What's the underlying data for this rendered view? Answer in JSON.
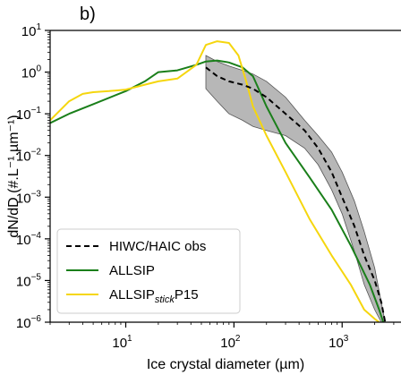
{
  "panel_label": "b)",
  "chart_data": {
    "type": "line",
    "title": "",
    "xlabel": "Ice crystal diameter (µm)",
    "ylabel": "dN/dD (#.L⁻¹.µm⁻¹)",
    "x_scale": "log",
    "y_scale": "log",
    "xlim": [
      2,
      3500
    ],
    "ylim": [
      1e-06,
      10
    ],
    "x_ticks": [
      {
        "value": 10,
        "base": "10",
        "exp": "1"
      },
      {
        "value": 100,
        "base": "10",
        "exp": "2"
      },
      {
        "value": 1000,
        "base": "10",
        "exp": "3"
      }
    ],
    "y_ticks": [
      {
        "value": 10,
        "base": "10",
        "exp": "1"
      },
      {
        "value": 1,
        "base": "10",
        "exp": "0"
      },
      {
        "value": 0.1,
        "base": "10",
        "exp": "−1"
      },
      {
        "value": 0.01,
        "base": "10",
        "exp": "−2"
      },
      {
        "value": 0.001,
        "base": "10",
        "exp": "−3"
      },
      {
        "value": 0.0001,
        "base": "10",
        "exp": "−4"
      },
      {
        "value": 1e-05,
        "base": "10",
        "exp": "−5"
      },
      {
        "value": 1e-06,
        "base": "10",
        "exp": "−6"
      }
    ],
    "legend_position": "lower-left",
    "shaded_range": {
      "color": "#999999",
      "x": [
        55,
        70,
        90,
        120,
        150,
        200,
        300,
        450,
        600,
        800,
        1000,
        1300,
        1600,
        2000,
        2300,
        2500
      ],
      "upper": [
        2.5,
        1.8,
        1.4,
        1.1,
        0.9,
        0.6,
        0.25,
        0.07,
        0.03,
        0.012,
        0.004,
        0.0008,
        0.00015,
        2e-05,
        3e-06,
        1e-06
      ],
      "lower": [
        0.4,
        0.2,
        0.1,
        0.07,
        0.05,
        0.04,
        0.03,
        0.015,
        0.006,
        0.0015,
        0.0004,
        5e-05,
        8e-06,
        2e-06,
        1e-06,
        1e-06
      ]
    },
    "series": [
      {
        "name": "HIWC/HAIC obs",
        "color": "#000000",
        "style": "dashed",
        "x": [
          55,
          70,
          90,
          120,
          150,
          200,
          300,
          450,
          600,
          800,
          1000,
          1300,
          1600,
          2000,
          2300,
          2500
        ],
        "y": [
          1.3,
          0.8,
          0.6,
          0.5,
          0.4,
          0.25,
          0.1,
          0.04,
          0.015,
          0.004,
          0.001,
          0.0002,
          4e-05,
          1e-05,
          3e-06,
          1e-06
        ]
      },
      {
        "name": "ALLSIP",
        "color": "#1a7f1a",
        "style": "solid",
        "x": [
          2,
          3,
          5,
          10,
          15,
          20,
          30,
          45,
          55,
          70,
          90,
          120,
          150,
          200,
          300,
          500,
          800,
          1200,
          1800,
          2200,
          2400
        ],
        "y": [
          0.06,
          0.1,
          0.17,
          0.35,
          0.6,
          1.0,
          1.1,
          1.5,
          1.8,
          1.9,
          1.7,
          1.3,
          0.8,
          0.15,
          0.02,
          0.003,
          0.0005,
          7e-05,
          8e-06,
          2e-06,
          1e-06
        ]
      },
      {
        "name": "ALLSIP",
        "subscript": "stick",
        "suffix": "P15",
        "color": "#f5d60e",
        "style": "solid",
        "x": [
          2,
          3,
          4,
          5,
          7,
          10,
          15,
          20,
          30,
          45,
          55,
          70,
          90,
          110,
          130,
          150,
          200,
          300,
          500,
          800,
          1200,
          1600,
          2000,
          2200
        ],
        "y": [
          0.07,
          0.2,
          0.3,
          0.33,
          0.35,
          0.38,
          0.5,
          0.6,
          0.7,
          1.5,
          4.5,
          5.5,
          5.0,
          2.5,
          0.6,
          0.15,
          0.03,
          0.004,
          0.0003,
          4e-05,
          8e-06,
          2e-06,
          1.2e-06,
          1e-06
        ]
      }
    ]
  }
}
